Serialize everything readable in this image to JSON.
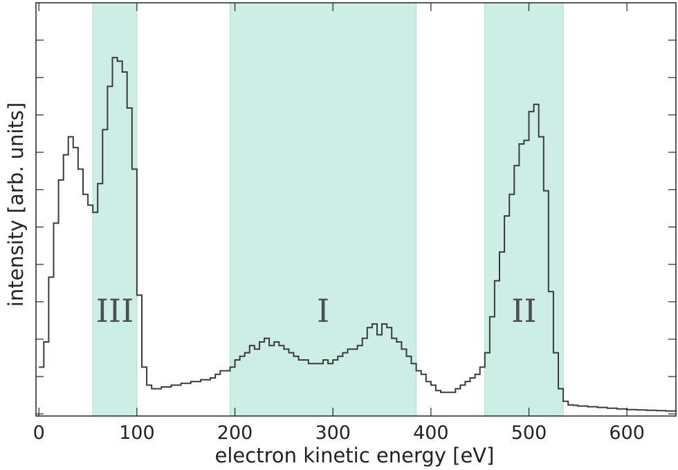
{
  "chart_data": {
    "type": "line",
    "xlabel": "electron kinetic energy [eV]",
    "ylabel": "intensity [arb. units]",
    "xlim": [
      -3,
      650
    ],
    "ylim": [
      0,
      1
    ],
    "x_ticks": [
      0,
      100,
      200,
      300,
      400,
      500,
      600
    ],
    "x_tick_labels": [
      "0",
      "100",
      "200",
      "300",
      "400",
      "500",
      "600"
    ],
    "y_tick_labels_shown": false,
    "step": true,
    "regions": [
      {
        "label": "III",
        "x0": 55,
        "x1": 100,
        "color": "#cdeee4"
      },
      {
        "label": "I",
        "x0": 195,
        "x1": 385,
        "color": "#cdeee4"
      },
      {
        "label": "II",
        "x0": 455,
        "x1": 535,
        "color": "#cdeee4"
      }
    ],
    "series": [
      {
        "x": [
          0,
          5,
          10,
          15,
          20,
          25,
          30,
          35,
          40,
          45,
          50,
          55,
          60,
          65,
          70,
          75,
          80,
          85,
          90,
          95,
          100,
          105,
          110,
          115,
          120,
          125,
          130,
          135,
          140,
          145,
          150,
          155,
          160,
          165,
          170,
          175,
          180,
          185,
          190,
          195,
          200,
          205,
          210,
          215,
          220,
          225,
          230,
          235,
          240,
          245,
          250,
          255,
          260,
          265,
          270,
          275,
          280,
          285,
          290,
          295,
          300,
          305,
          310,
          315,
          320,
          325,
          330,
          335,
          340,
          345,
          350,
          355,
          360,
          365,
          370,
          375,
          380,
          385,
          390,
          395,
          400,
          405,
          410,
          415,
          420,
          425,
          430,
          435,
          440,
          445,
          450,
          455,
          460,
          465,
          470,
          475,
          480,
          485,
          490,
          495,
          500,
          505,
          510,
          515,
          520,
          525,
          530,
          535,
          540,
          545,
          550,
          560,
          570,
          580,
          590,
          600,
          610,
          620,
          630,
          640,
          650
        ],
        "values": [
          0.13,
          0.2,
          0.38,
          0.53,
          0.65,
          0.72,
          0.77,
          0.74,
          0.68,
          0.61,
          0.58,
          0.56,
          0.64,
          0.79,
          0.91,
          0.99,
          0.98,
          0.95,
          0.85,
          0.68,
          0.33,
          0.13,
          0.08,
          0.07,
          0.07,
          0.075,
          0.075,
          0.08,
          0.08,
          0.085,
          0.085,
          0.09,
          0.09,
          0.095,
          0.095,
          0.1,
          0.11,
          0.12,
          0.12,
          0.13,
          0.15,
          0.16,
          0.17,
          0.19,
          0.18,
          0.2,
          0.21,
          0.19,
          0.2,
          0.19,
          0.18,
          0.17,
          0.16,
          0.15,
          0.15,
          0.14,
          0.14,
          0.14,
          0.15,
          0.14,
          0.15,
          0.16,
          0.17,
          0.18,
          0.18,
          0.19,
          0.21,
          0.24,
          0.25,
          0.22,
          0.25,
          0.24,
          0.21,
          0.2,
          0.18,
          0.16,
          0.14,
          0.12,
          0.11,
          0.09,
          0.08,
          0.065,
          0.06,
          0.06,
          0.06,
          0.07,
          0.08,
          0.09,
          0.1,
          0.11,
          0.13,
          0.17,
          0.27,
          0.37,
          0.45,
          0.55,
          0.61,
          0.69,
          0.75,
          0.76,
          0.84,
          0.86,
          0.77,
          0.62,
          0.34,
          0.17,
          0.07,
          0.035,
          0.025,
          0.024,
          0.022,
          0.02,
          0.018,
          0.016,
          0.014,
          0.012,
          0.011,
          0.01,
          0.009,
          0.008,
          0.007
        ]
      }
    ]
  }
}
